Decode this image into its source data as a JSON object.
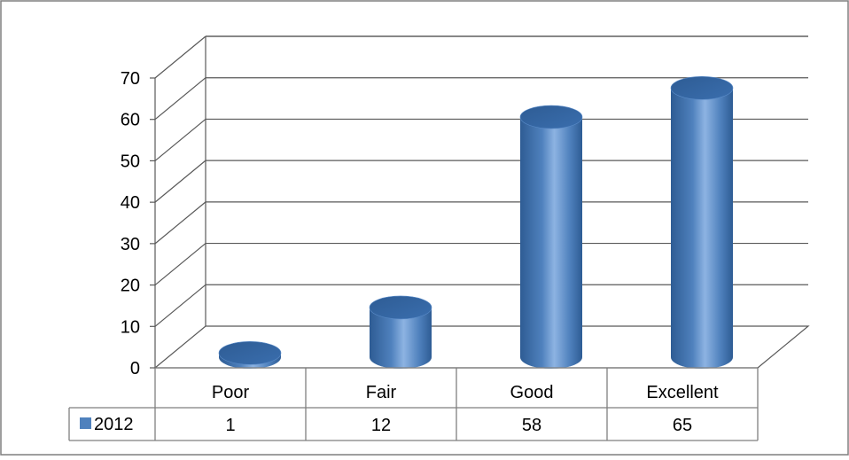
{
  "chart_data": {
    "type": "bar",
    "style": "3d-cylinder",
    "categories": [
      "Poor",
      "Fair",
      "Good",
      "Excellent"
    ],
    "series": [
      {
        "name": "2012",
        "values": [
          1,
          12,
          58,
          65
        ],
        "color": "#4F81BD"
      }
    ],
    "ylim": [
      0,
      70
    ],
    "yticks": [
      0,
      10,
      20,
      30,
      40,
      50,
      60,
      70
    ],
    "grid": true,
    "legend": "data-table-left",
    "data_table": true
  },
  "colors": {
    "series_fill": "#4F81BD",
    "series_dark": "#2E5C94",
    "series_light": "#8DB3E2",
    "gridline": "#595959",
    "border": "#7F7F7F"
  }
}
